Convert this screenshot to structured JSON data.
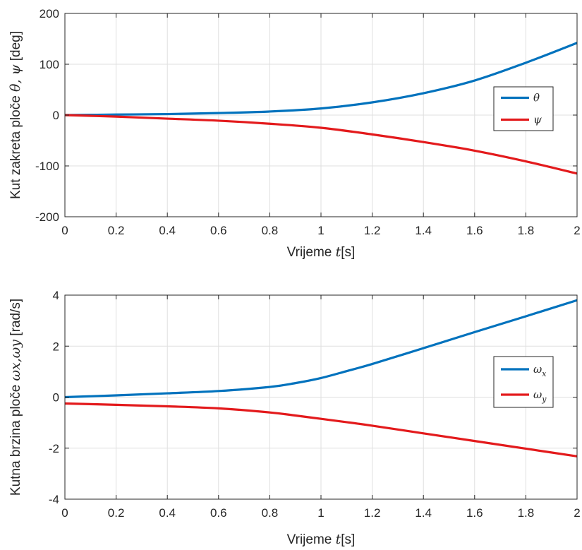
{
  "chart_data": [
    {
      "type": "line",
      "title": "",
      "xlabel": {
        "prefix": "Vrijeme ",
        "var": "t",
        "suffix": "[s]"
      },
      "ylabel": {
        "prefix": "Kut zakreta ploče ",
        "vars": "θ, ψ",
        "suffix": " [deg]"
      },
      "xlim": [
        0,
        2
      ],
      "ylim": [
        -200,
        200
      ],
      "xticks": [
        0,
        0.2,
        0.4,
        0.6,
        0.8,
        1,
        1.2,
        1.4,
        1.6,
        1.8,
        2
      ],
      "xtick_labels": [
        "0",
        "0.2",
        "0.4",
        "0.6",
        "0.8",
        "1",
        "1.2",
        "1.4",
        "1.6",
        "1.8",
        "2"
      ],
      "yticks": [
        -200,
        -100,
        0,
        100,
        200
      ],
      "ytick_labels": [
        "-200",
        "-100",
        "0",
        "100",
        "200"
      ],
      "grid": true,
      "legend_position": "right",
      "x": [
        0,
        0.2,
        0.4,
        0.6,
        0.8,
        1.0,
        1.2,
        1.4,
        1.6,
        1.8,
        2.0
      ],
      "series": [
        {
          "name": "θ",
          "color": "#0072BD",
          "values": [
            0,
            1,
            2,
            4,
            7,
            13,
            25,
            43,
            68,
            103,
            142
          ]
        },
        {
          "name": "ψ",
          "color": "#D95319",
          "values": [
            0,
            -3,
            -7,
            -11,
            -17,
            -25,
            -38,
            -53,
            -70,
            -91,
            -115
          ]
        }
      ]
    },
    {
      "type": "line",
      "title": "",
      "xlabel": {
        "prefix": "Vrijeme ",
        "var": "t",
        "suffix": "[s]"
      },
      "ylabel": {
        "prefix": "Kutna brzina ploče ",
        "vars": "ωx,ωy",
        "suffix": " [rad/s]"
      },
      "xlim": [
        0,
        2
      ],
      "ylim": [
        -4,
        4
      ],
      "xticks": [
        0,
        0.2,
        0.4,
        0.6,
        0.8,
        1,
        1.2,
        1.4,
        1.6,
        1.8,
        2
      ],
      "xtick_labels": [
        "0",
        "0.2",
        "0.4",
        "0.6",
        "0.8",
        "1",
        "1.2",
        "1.4",
        "1.6",
        "1.8",
        "2"
      ],
      "yticks": [
        -4,
        -2,
        0,
        2,
        4
      ],
      "ytick_labels": [
        "-4",
        "-2",
        "0",
        "2",
        "4"
      ],
      "grid": true,
      "legend_position": "right",
      "x": [
        0,
        0.2,
        0.4,
        0.6,
        0.8,
        0.9,
        1.0,
        1.1,
        1.2,
        1.4,
        1.6,
        1.8,
        2.0
      ],
      "series": [
        {
          "name": "ωx",
          "color": "#0072BD",
          "values": [
            0,
            0.07,
            0.15,
            0.24,
            0.4,
            0.55,
            0.75,
            1.02,
            1.3,
            1.92,
            2.55,
            3.17,
            3.8
          ]
        },
        {
          "name": "ωy",
          "color": "#D95319",
          "values": [
            -0.25,
            -0.3,
            -0.36,
            -0.44,
            -0.6,
            -0.72,
            -0.85,
            -0.98,
            -1.12,
            -1.42,
            -1.72,
            -2.02,
            -2.32
          ]
        }
      ]
    }
  ]
}
